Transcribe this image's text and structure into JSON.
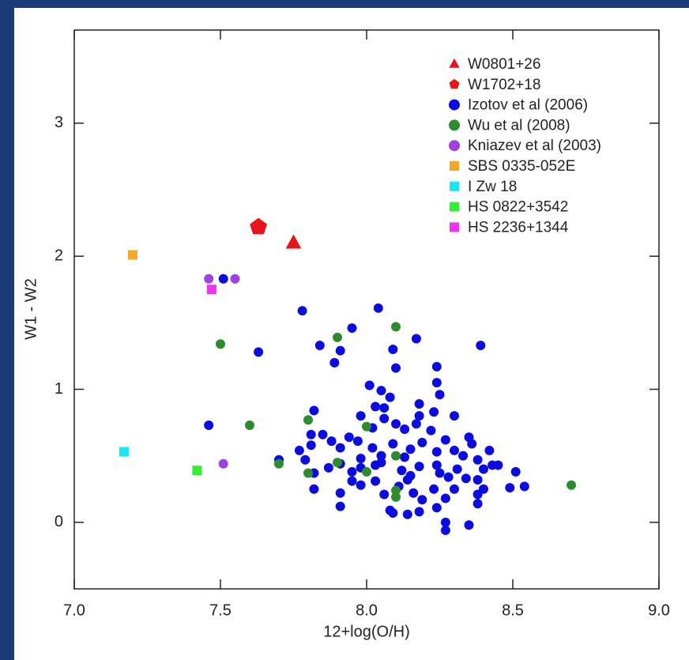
{
  "chart_data": {
    "type": "scatter",
    "xlabel": "12+log(O/H)",
    "ylabel": "W1 - W2",
    "xlim": [
      7.0,
      9.0
    ],
    "ylim": [
      -0.5,
      3.7
    ],
    "xticks": [
      {
        "value": 7,
        "label": "7.0"
      },
      {
        "value": 7.5,
        "label": "7.5"
      },
      {
        "value": 8,
        "label": "8.0"
      },
      {
        "value": 8.5,
        "label": "8.5"
      },
      {
        "value": 9,
        "label": "9.0"
      }
    ],
    "yticks": [
      0,
      1,
      2,
      3
    ],
    "legend": "upper right",
    "series": [
      {
        "name": "W0801+26",
        "color": "#e8141a",
        "marker": "triangle",
        "x": [
          7.75
        ],
        "y": [
          2.1
        ]
      },
      {
        "name": "W1702+18",
        "color": "#e8141a",
        "marker": "pentagon",
        "x": [
          7.63
        ],
        "y": [
          2.22
        ]
      },
      {
        "name": "Izotov et al (2006)",
        "color": "#0c0ce0",
        "marker": "circle",
        "x": [
          7.51,
          7.46,
          7.63,
          7.7,
          7.78,
          7.84,
          7.91,
          7.89,
          7.95,
          8.04,
          8.09,
          8.1,
          8.17,
          8.39,
          8.24,
          8.01,
          8.05,
          8.24,
          8.25,
          8.08,
          7.82,
          7.98,
          8.03,
          8.06,
          8.18,
          8.3,
          8.18,
          8.23,
          7.81,
          7.85,
          7.88,
          7.94,
          7.97,
          8.02,
          8.06,
          8.1,
          8.13,
          8.17,
          8.22,
          8.27,
          8.35,
          8.36,
          7.77,
          7.81,
          7.91,
          7.98,
          8.02,
          8.05,
          8.09,
          8.13,
          8.15,
          8.19,
          8.24,
          8.3,
          8.33,
          8.38,
          8.42,
          8.43,
          8.45,
          7.79,
          7.82,
          7.87,
          7.91,
          7.95,
          7.98,
          8.03,
          8.05,
          8.12,
          8.15,
          8.18,
          8.24,
          8.25,
          8.28,
          8.31,
          8.34,
          8.38,
          8.4,
          8.51,
          7.82,
          7.91,
          7.95,
          7.98,
          8.03,
          8.06,
          8.08,
          8.11,
          8.14,
          8.16,
          8.19,
          8.23,
          8.24,
          8.27,
          8.3,
          8.38,
          8.4,
          8.38,
          8.49,
          8.54,
          7.91,
          8.14,
          8.18,
          8.27,
          8.27,
          8.35,
          8.09
        ],
        "y": [
          1.83,
          0.73,
          1.28,
          0.47,
          1.59,
          1.33,
          1.29,
          1.2,
          1.46,
          1.61,
          1.3,
          1.16,
          1.38,
          1.33,
          1.17,
          1.03,
          0.99,
          1.05,
          0.96,
          0.94,
          0.84,
          0.8,
          0.87,
          0.86,
          0.89,
          0.8,
          0.8,
          0.83,
          0.66,
          0.66,
          0.61,
          0.64,
          0.61,
          0.71,
          0.78,
          0.74,
          0.7,
          0.74,
          0.69,
          0.62,
          0.64,
          0.59,
          0.54,
          0.58,
          0.56,
          0.48,
          0.56,
          0.5,
          0.59,
          0.49,
          0.55,
          0.6,
          0.53,
          0.54,
          0.5,
          0.47,
          0.54,
          0.43,
          0.43,
          0.47,
          0.37,
          0.41,
          0.44,
          0.38,
          0.41,
          0.43,
          0.45,
          0.39,
          0.35,
          0.42,
          0.43,
          0.37,
          0.34,
          0.4,
          0.33,
          0.32,
          0.4,
          0.38,
          0.25,
          0.22,
          0.31,
          0.28,
          0.31,
          0.21,
          0.09,
          0.27,
          0.32,
          0.22,
          0.17,
          0.25,
          0.11,
          0.18,
          0.25,
          0.21,
          0.25,
          0.14,
          0.26,
          0.27,
          0.12,
          0.06,
          0.08,
          0.0,
          -0.06,
          -0.02,
          0.07
        ]
      },
      {
        "name": "Wu et al (2008)",
        "color": "#2e8b2e",
        "marker": "circle",
        "x": [
          7.5,
          7.6,
          7.7,
          7.8,
          7.8,
          7.9,
          7.9,
          8.0,
          8.0,
          8.1,
          8.1,
          8.1,
          8.1,
          8.7
        ],
        "y": [
          1.34,
          0.73,
          0.44,
          0.77,
          0.37,
          1.39,
          0.45,
          0.72,
          0.38,
          1.47,
          0.5,
          0.24,
          0.19,
          0.28
        ]
      },
      {
        "name": "Kniazev et al (2003)",
        "color": "#a040e0",
        "marker": "circle",
        "x": [
          7.46,
          7.55,
          7.51
        ],
        "y": [
          1.83,
          1.83,
          0.44
        ]
      },
      {
        "name": "SBS 0335-052E",
        "color": "#f5a623",
        "marker": "square",
        "x": [
          7.2
        ],
        "y": [
          2.01
        ]
      },
      {
        "name": "I Zw 18",
        "color": "#19e6f0",
        "marker": "square",
        "x": [
          7.17
        ],
        "y": [
          0.53
        ]
      },
      {
        "name": "HS 0822+3542",
        "color": "#33ee33",
        "marker": "square",
        "x": [
          7.42
        ],
        "y": [
          0.39
        ]
      },
      {
        "name": "HS 2236+1344",
        "color": "#ee33ee",
        "marker": "square",
        "x": [
          7.47
        ],
        "y": [
          1.75
        ]
      }
    ]
  }
}
